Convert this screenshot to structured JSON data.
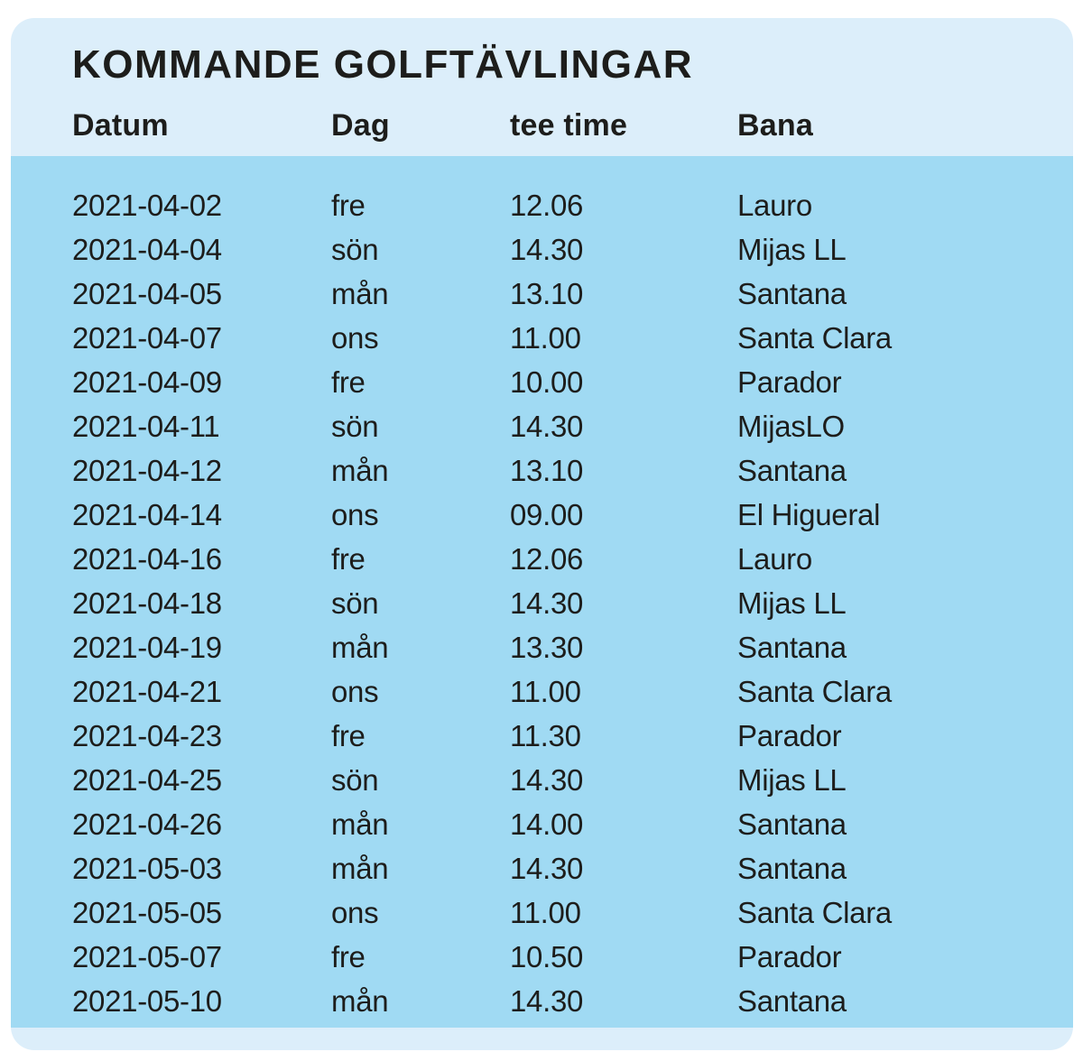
{
  "card": {
    "title": "KOMMANDE GOLFTÄVLINGAR",
    "colors": {
      "header_bg": "#dceefa",
      "body_bg": "#a0daf3",
      "text": "#1d1d1b",
      "page_bg": "#ffffff"
    }
  },
  "table": {
    "columns": [
      {
        "key": "datum",
        "label": "Datum"
      },
      {
        "key": "dag",
        "label": "Dag"
      },
      {
        "key": "tee_time",
        "label": "tee time"
      },
      {
        "key": "bana",
        "label": "Bana"
      }
    ],
    "rows": [
      {
        "datum": "2021-04-02",
        "dag": "fre",
        "tee_time": "12.06",
        "bana": "Lauro"
      },
      {
        "datum": "2021-04-04",
        "dag": "sön",
        "tee_time": "14.30",
        "bana": "Mijas LL"
      },
      {
        "datum": "2021-04-05",
        "dag": "mån",
        "tee_time": "13.10",
        "bana": "Santana"
      },
      {
        "datum": "2021-04-07",
        "dag": "ons",
        "tee_time": "11.00",
        "bana": "Santa Clara"
      },
      {
        "datum": "2021-04-09",
        "dag": "fre",
        "tee_time": "10.00",
        "bana": "Parador"
      },
      {
        "datum": "2021-04-11",
        "dag": "sön",
        "tee_time": "14.30",
        "bana": "MijasLO"
      },
      {
        "datum": "2021-04-12",
        "dag": "mån",
        "tee_time": "13.10",
        "bana": "Santana"
      },
      {
        "datum": "2021-04-14",
        "dag": "ons",
        "tee_time": "09.00",
        "bana": "El Higueral"
      },
      {
        "datum": "2021-04-16",
        "dag": "fre",
        "tee_time": "12.06",
        "bana": "Lauro"
      },
      {
        "datum": "2021-04-18",
        "dag": "sön",
        "tee_time": "14.30",
        "bana": "Mijas LL"
      },
      {
        "datum": "2021-04-19",
        "dag": "mån",
        "tee_time": "13.30",
        "bana": "Santana"
      },
      {
        "datum": "2021-04-21",
        "dag": "ons",
        "tee_time": "11.00",
        "bana": "Santa Clara"
      },
      {
        "datum": "2021-04-23",
        "dag": "fre",
        "tee_time": "11.30",
        "bana": "Parador"
      },
      {
        "datum": "2021-04-25",
        "dag": "sön",
        "tee_time": "14.30",
        "bana": "Mijas LL"
      },
      {
        "datum": "2021-04-26",
        "dag": "mån",
        "tee_time": "14.00",
        "bana": "Santana"
      },
      {
        "datum": "2021-05-03",
        "dag": "mån",
        "tee_time": "14.30",
        "bana": "Santana"
      },
      {
        "datum": "2021-05-05",
        "dag": "ons",
        "tee_time": "11.00",
        "bana": "Santa Clara"
      },
      {
        "datum": "2021-05-07",
        "dag": "fre",
        "tee_time": "10.50",
        "bana": "Parador"
      },
      {
        "datum": "2021-05-10",
        "dag": "mån",
        "tee_time": "14.30",
        "bana": "Santana"
      }
    ]
  }
}
